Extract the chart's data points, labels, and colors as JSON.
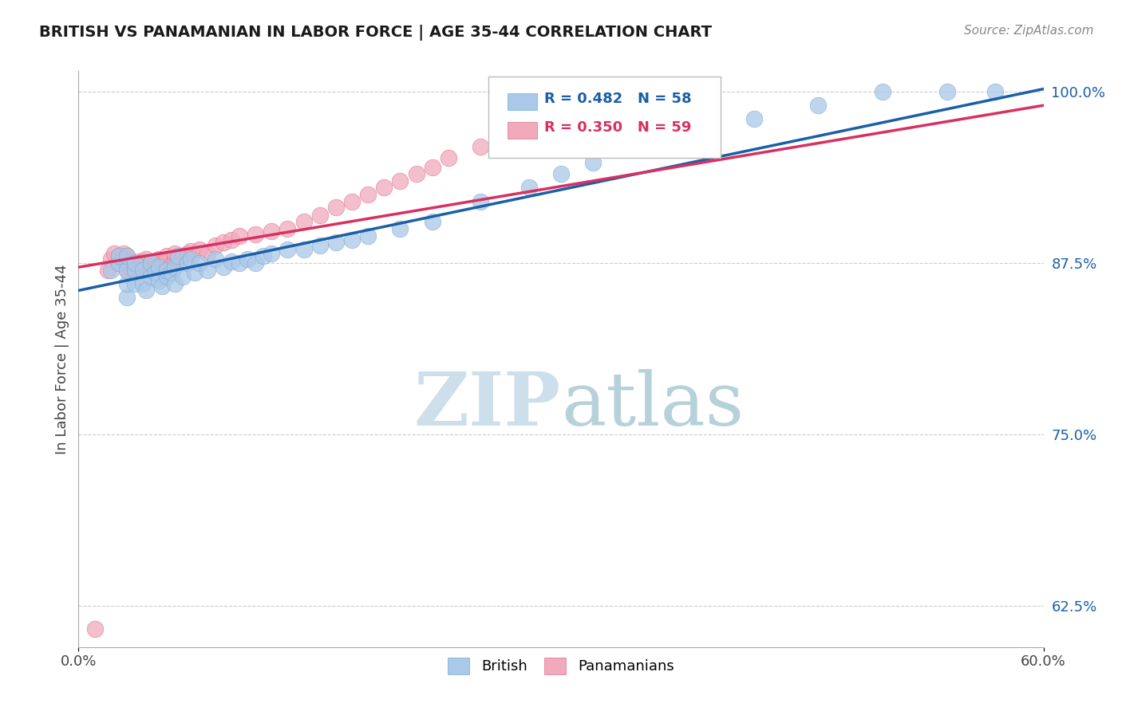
{
  "title": "BRITISH VS PANAMANIAN IN LABOR FORCE | AGE 35-44 CORRELATION CHART",
  "source": "Source: ZipAtlas.com",
  "ylabel": "In Labor Force | Age 35-44",
  "xlim": [
    0.0,
    0.6
  ],
  "ylim": [
    0.595,
    1.015
  ],
  "xticks": [
    0.0,
    0.6
  ],
  "xticklabels": [
    "0.0%",
    "60.0%"
  ],
  "yticks": [
    0.625,
    0.75,
    0.875,
    1.0
  ],
  "yticklabels": [
    "62.5%",
    "75.0%",
    "87.5%",
    "100.0%"
  ],
  "british_R": 0.482,
  "british_N": 58,
  "panamanian_R": 0.35,
  "panamanian_N": 59,
  "british_color": "#aac8e8",
  "british_edge_color": "#7aaad0",
  "british_line_color": "#1a5fa8",
  "panamanian_color": "#f0aabb",
  "panamanian_edge_color": "#e07090",
  "panamanian_line_color": "#d83060",
  "r_text_color_blue": "#1a5fa8",
  "r_text_color_pink": "#d83060",
  "ytick_color": "#1a5fa8",
  "xtick_color": "#444444",
  "watermark_zip_color": "#c8dce8",
  "watermark_atlas_color": "#b0ccd8",
  "british_x": [
    0.02,
    0.025,
    0.025,
    0.03,
    0.03,
    0.03,
    0.03,
    0.035,
    0.035,
    0.035,
    0.04,
    0.04,
    0.042,
    0.045,
    0.045,
    0.048,
    0.05,
    0.05,
    0.052,
    0.055,
    0.055,
    0.058,
    0.06,
    0.06,
    0.062,
    0.065,
    0.068,
    0.07,
    0.072,
    0.075,
    0.08,
    0.085,
    0.09,
    0.095,
    0.1,
    0.105,
    0.11,
    0.115,
    0.12,
    0.13,
    0.14,
    0.15,
    0.16,
    0.17,
    0.18,
    0.2,
    0.22,
    0.25,
    0.28,
    0.3,
    0.32,
    0.35,
    0.38,
    0.42,
    0.46,
    0.5,
    0.54,
    0.57
  ],
  "british_y": [
    0.87,
    0.875,
    0.88,
    0.85,
    0.86,
    0.87,
    0.88,
    0.86,
    0.87,
    0.875,
    0.86,
    0.87,
    0.855,
    0.865,
    0.875,
    0.868,
    0.862,
    0.872,
    0.858,
    0.865,
    0.87,
    0.868,
    0.86,
    0.872,
    0.88,
    0.865,
    0.875,
    0.878,
    0.868,
    0.875,
    0.87,
    0.878,
    0.872,
    0.876,
    0.875,
    0.878,
    0.875,
    0.88,
    0.882,
    0.885,
    0.885,
    0.888,
    0.89,
    0.892,
    0.895,
    0.9,
    0.905,
    0.92,
    0.93,
    0.94,
    0.948,
    0.96,
    0.97,
    0.98,
    0.99,
    1.0,
    1.0,
    1.0
  ],
  "panamanian_x": [
    0.01,
    0.018,
    0.02,
    0.022,
    0.025,
    0.025,
    0.028,
    0.028,
    0.03,
    0.03,
    0.03,
    0.032,
    0.032,
    0.035,
    0.035,
    0.038,
    0.038,
    0.04,
    0.04,
    0.042,
    0.042,
    0.045,
    0.048,
    0.05,
    0.05,
    0.052,
    0.055,
    0.055,
    0.058,
    0.06,
    0.06,
    0.062,
    0.065,
    0.068,
    0.07,
    0.075,
    0.08,
    0.085,
    0.09,
    0.095,
    0.1,
    0.11,
    0.12,
    0.13,
    0.14,
    0.15,
    0.16,
    0.17,
    0.18,
    0.19,
    0.2,
    0.21,
    0.22,
    0.23,
    0.25,
    0.27,
    0.3,
    0.34,
    0.38
  ],
  "panamanian_y": [
    0.608,
    0.87,
    0.878,
    0.882,
    0.875,
    0.88,
    0.878,
    0.882,
    0.87,
    0.875,
    0.88,
    0.872,
    0.876,
    0.868,
    0.874,
    0.87,
    0.876,
    0.87,
    0.876,
    0.872,
    0.878,
    0.875,
    0.876,
    0.87,
    0.878,
    0.875,
    0.876,
    0.88,
    0.874,
    0.878,
    0.882,
    0.878,
    0.88,
    0.882,
    0.884,
    0.885,
    0.882,
    0.888,
    0.89,
    0.892,
    0.895,
    0.896,
    0.898,
    0.9,
    0.905,
    0.91,
    0.916,
    0.92,
    0.925,
    0.93,
    0.935,
    0.94,
    0.945,
    0.952,
    0.96,
    0.97,
    0.98,
    0.992,
    1.0
  ]
}
